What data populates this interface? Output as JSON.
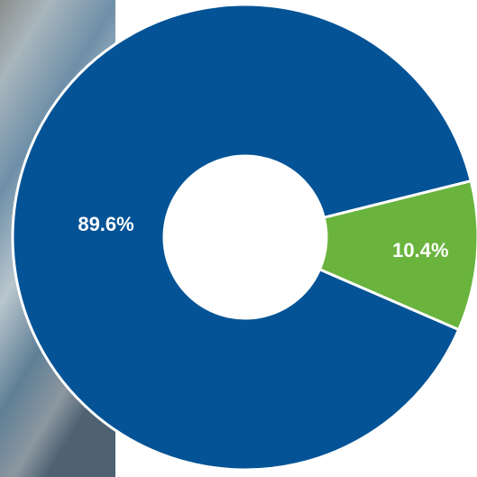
{
  "chart_data": {
    "type": "donut",
    "values": [
      10.4,
      89.6
    ],
    "value_labels": [
      "10.4%",
      "89.6%"
    ],
    "colors": [
      "#6ab43e",
      "#035396"
    ]
  }
}
